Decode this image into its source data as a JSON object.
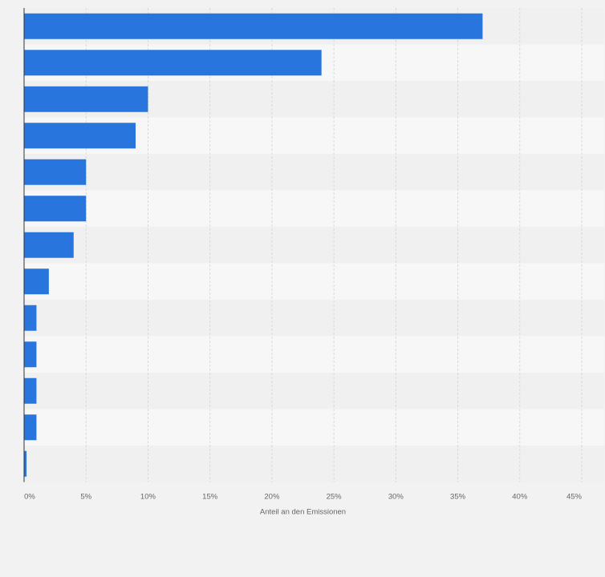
{
  "chart_data": {
    "type": "bar",
    "orientation": "horizontal",
    "categories": [
      "",
      "",
      "",
      "",
      "",
      "",
      "",
      "",
      "",
      "",
      "",
      "",
      ""
    ],
    "values": [
      37,
      24,
      10,
      9,
      5,
      5,
      4,
      2,
      1,
      1,
      1,
      1,
      0.2
    ],
    "title": "",
    "xlabel": "Anteil an den Emissionen",
    "ylabel": "",
    "xlim": [
      0,
      45
    ],
    "x_ticks": [
      0,
      5,
      10,
      15,
      20,
      25,
      30,
      35,
      40,
      45
    ],
    "x_tick_labels": [
      "0%",
      "5%",
      "10%",
      "15%",
      "20%",
      "25%",
      "30%",
      "35%",
      "40%",
      "45%"
    ],
    "grid": true,
    "legend": "none",
    "colors": {
      "bar": "#2876dd",
      "page_background": "#f2f2f2",
      "band_light": "#f7f7f7",
      "band_dark": "#f0f0f0",
      "grid": "#d9d9d9",
      "axis": "#333333",
      "text": "#666666"
    }
  }
}
